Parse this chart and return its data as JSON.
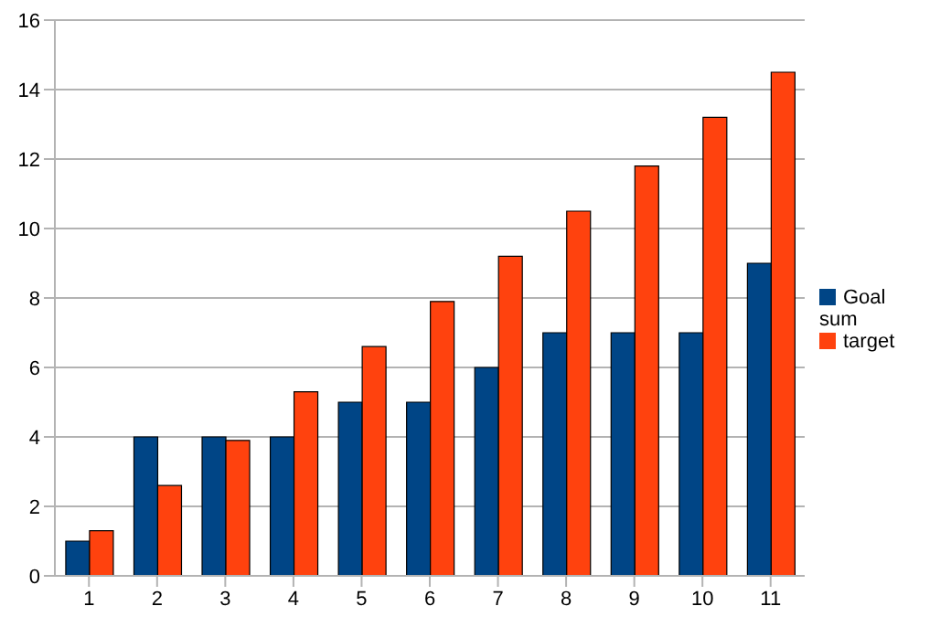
{
  "chart_data": {
    "type": "bar",
    "categories": [
      "1",
      "2",
      "3",
      "4",
      "5",
      "6",
      "7",
      "8",
      "9",
      "10",
      "11"
    ],
    "series": [
      {
        "name": "Goal sum",
        "color": "#004586",
        "values": [
          1,
          4,
          4,
          4,
          5,
          5,
          6,
          7,
          7,
          7,
          9
        ]
      },
      {
        "name": "target",
        "color": "#ff420e",
        "values": [
          1.3,
          2.6,
          3.9,
          5.3,
          6.6,
          7.9,
          9.2,
          10.5,
          11.8,
          13.2,
          14.5
        ]
      }
    ],
    "ylim": [
      0,
      16
    ],
    "yticks": [
      0,
      2,
      4,
      6,
      8,
      10,
      12,
      14,
      16
    ],
    "grid": "y",
    "legend": "right"
  }
}
